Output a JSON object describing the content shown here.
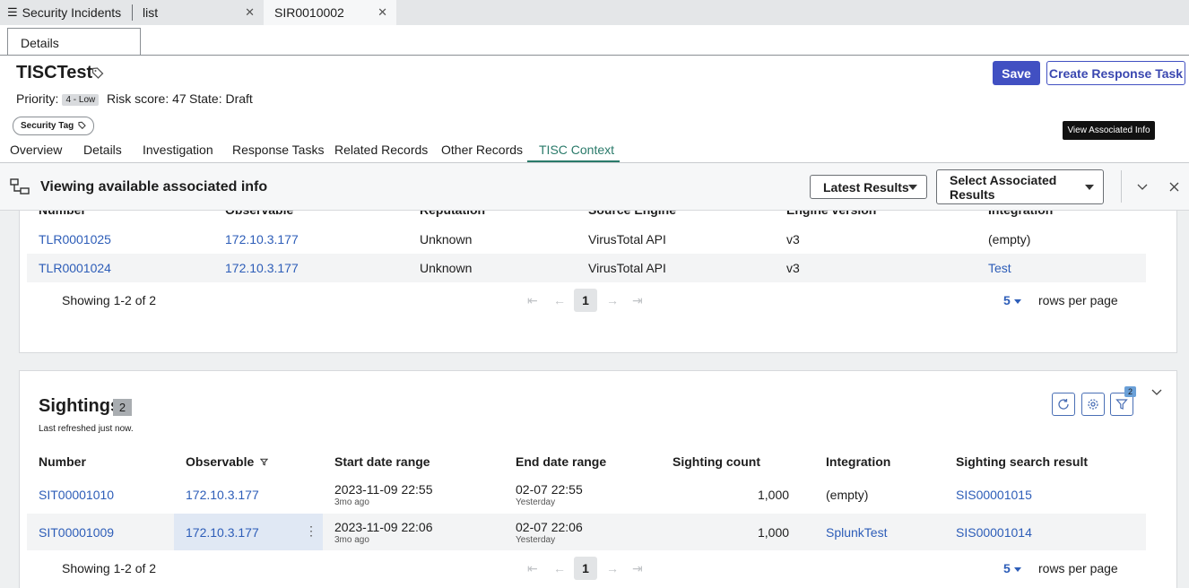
{
  "tabs": {
    "menu_label": "Security Incidents",
    "list_label": "list",
    "record_label": "SIR0010002",
    "details_tab": "Details"
  },
  "record": {
    "title": "TISCTest",
    "priority_label": "Priority:",
    "priority_value": "4 - Low",
    "risk_label": "Risk score:",
    "risk_value": "47",
    "state_label": "State:",
    "state_value": "Draft",
    "security_tag": "Security Tag"
  },
  "actions": {
    "save": "Save",
    "create_response_task": "Create Response Task",
    "view_associated_info": "View Associated Info"
  },
  "nav": [
    "Overview",
    "Details",
    "Investigation",
    "Response Tasks",
    "Related Records",
    "Other Records",
    "TISC Context"
  ],
  "assoc": {
    "title": "Viewing available associated info",
    "latest_results": "Latest Results",
    "select_results": "Select Associated Results"
  },
  "lookup_table": {
    "headers": [
      "Number",
      "Observable",
      "Reputation",
      "Source Engine",
      "Engine version",
      "Integration"
    ],
    "rows": [
      [
        "TLR0001025",
        "172.10.3.177",
        "Unknown",
        "VirusTotal API",
        "v3",
        "(empty)"
      ],
      [
        "TLR0001024",
        "172.10.3.177",
        "Unknown",
        "VirusTotal API",
        "v3",
        "Test"
      ]
    ],
    "showing": "Showing 1-2 of 2",
    "page": "1",
    "rows_per_page": "5",
    "rows_per_page_label": "rows per page"
  },
  "sightings": {
    "title": "Sightings",
    "count": "2",
    "refreshed": "Last refreshed just now.",
    "filter_count": "2",
    "headers": [
      "Number",
      "Observable",
      "Start date range",
      "End date range",
      "Sighting count",
      "Integration",
      "Sighting search result"
    ],
    "rows": [
      {
        "number": "SIT00001010",
        "observable": "172.10.3.177",
        "start": "2023-11-09 22:55",
        "start_rel": "3mo ago",
        "end": "02-07 22:55",
        "end_rel": "Yesterday",
        "count": "1,000",
        "integration": "(empty)",
        "result": "SIS00001015"
      },
      {
        "number": "SIT00001009",
        "observable": "172.10.3.177",
        "start": "2023-11-09 22:06",
        "start_rel": "3mo ago",
        "end": "02-07 22:06",
        "end_rel": "Yesterday",
        "count": "1,000",
        "integration": "SplunkTest",
        "result": "SIS00001014"
      }
    ],
    "showing": "Showing 1-2 of 2",
    "page": "1",
    "rows_per_page": "5",
    "rows_per_page_label": "rows per page"
  }
}
